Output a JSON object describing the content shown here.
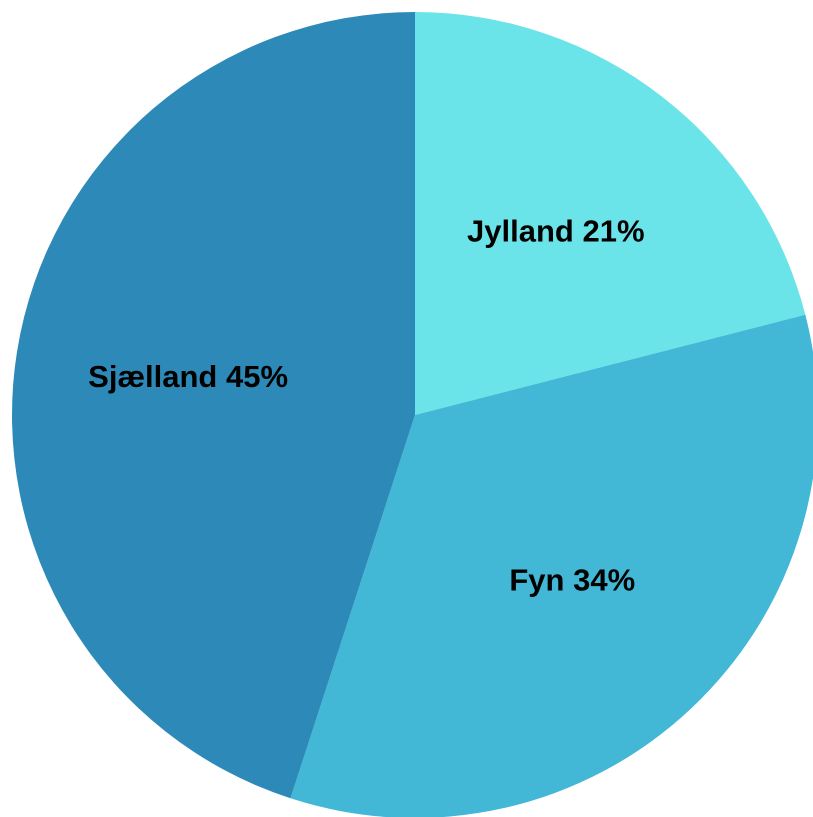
{
  "chart_data": {
    "type": "pie",
    "categories": [
      "Jylland",
      "Fyn",
      "Sjælland"
    ],
    "values": [
      21,
      34,
      45
    ],
    "value_labels": [
      "21%",
      "34%",
      "45%"
    ],
    "colors": [
      "#6ae4e8",
      "#42b7d6",
      "#2d8ab8"
    ]
  }
}
